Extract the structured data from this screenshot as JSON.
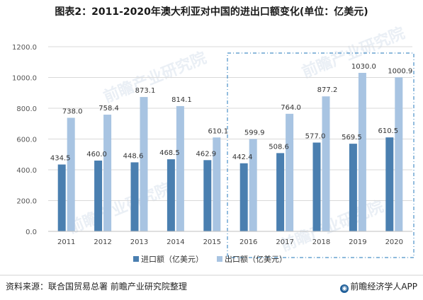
{
  "header": {
    "title": "图表2：2011-2020年澳大利亚对中国的进出口额变化(单位：亿美元)"
  },
  "footer": {
    "source": "资料来源：联合国贸易总署 前瞻产业研究院整理",
    "brand": "前瞻经济学人APP"
  },
  "watermark": "前瞻产业研究院",
  "colors": {
    "import": "#4a7fb0",
    "export": "#a8c4e2",
    "grid": "#d9d9d9",
    "highlight_box": "#4a90c8"
  },
  "chart_data": {
    "type": "bar",
    "categories": [
      "2011",
      "2012",
      "2013",
      "2014",
      "2015",
      "2016",
      "2017",
      "2018",
      "2019",
      "2020"
    ],
    "series": [
      {
        "name": "进口额（亿美元）",
        "values": [
          434.5,
          460.0,
          448.6,
          468.5,
          462.9,
          442.4,
          508.6,
          577.0,
          569.5,
          610.5
        ]
      },
      {
        "name": "出口额（亿美元）",
        "values": [
          738.0,
          758.4,
          873.1,
          814.1,
          610.1,
          599.9,
          764.0,
          877.2,
          1030.0,
          1000.9
        ]
      }
    ],
    "value_labels_import": [
      "434.5",
      "460.0",
      "448.6",
      "468.5",
      "462.9",
      "442.4",
      "508.6",
      "577.0",
      "569.5",
      "610.5"
    ],
    "value_labels_export": [
      "738.0",
      "758.4",
      "873.1",
      "814.1",
      "610.1",
      "599.9",
      "764.0",
      "877.2",
      "1030.0",
      "1000.9"
    ],
    "yticks": [
      "0.0",
      "200.0",
      "400.0",
      "600.0",
      "800.0",
      "1000.0",
      "1200.0"
    ],
    "ylim": [
      0,
      1200
    ],
    "grid": true,
    "legend": "bottom-center",
    "highlight_range": [
      "2016",
      "2020"
    ]
  }
}
